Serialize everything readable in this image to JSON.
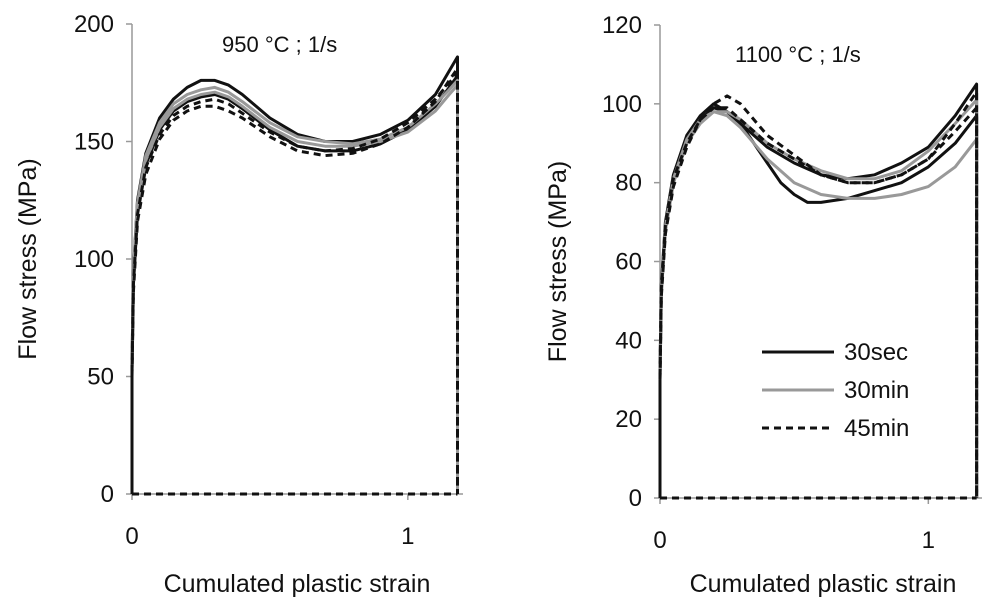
{
  "chart_data": [
    {
      "type": "line",
      "annotation": "950 °C ; 1/s",
      "xlabel": "Cumulated plastic strain",
      "ylabel": "Flow stress (MPa)",
      "xlim": [
        0,
        1.2
      ],
      "ylim": [
        0,
        200
      ],
      "xticks": [
        0,
        1
      ],
      "yticks": [
        0,
        50,
        100,
        150,
        200
      ],
      "grid": false,
      "series": [
        {
          "group": "30sec",
          "style": "solid",
          "color": "#111111",
          "x": [
            0,
            0.005,
            0.02,
            0.05,
            0.1,
            0.15,
            0.2,
            0.25,
            0.3,
            0.35,
            0.4,
            0.5,
            0.6,
            0.7,
            0.8,
            0.9,
            1.0,
            1.1,
            1.15,
            1.18
          ],
          "y": [
            55,
            95,
            125,
            145,
            160,
            168,
            173,
            176,
            176,
            174,
            170,
            160,
            153,
            150,
            150,
            153,
            159,
            170,
            180,
            186
          ]
        },
        {
          "group": "30sec",
          "style": "solid",
          "color": "#111111",
          "x": [
            0,
            0.005,
            0.02,
            0.05,
            0.1,
            0.15,
            0.2,
            0.25,
            0.3,
            0.35,
            0.4,
            0.5,
            0.6,
            0.7,
            0.8,
            0.9,
            1.0,
            1.1,
            1.15,
            1.18
          ],
          "y": [
            52,
            90,
            120,
            140,
            155,
            163,
            167,
            169,
            170,
            168,
            164,
            155,
            148,
            146,
            146,
            149,
            155,
            165,
            173,
            178
          ]
        },
        {
          "group": "30min",
          "style": "solid",
          "color": "#999999",
          "x": [
            0,
            0.005,
            0.02,
            0.05,
            0.1,
            0.15,
            0.2,
            0.25,
            0.3,
            0.35,
            0.4,
            0.5,
            0.6,
            0.7,
            0.8,
            0.9,
            1.0,
            1.1,
            1.15,
            1.18
          ],
          "y": [
            55,
            94,
            124,
            144,
            158,
            166,
            170,
            172,
            173,
            171,
            167,
            158,
            152,
            150,
            149,
            151,
            156,
            166,
            172,
            176
          ]
        },
        {
          "group": "30min",
          "style": "solid",
          "color": "#999999",
          "x": [
            0,
            0.005,
            0.02,
            0.05,
            0.1,
            0.15,
            0.2,
            0.25,
            0.3,
            0.35,
            0.4,
            0.5,
            0.6,
            0.7,
            0.8,
            0.9,
            1.0,
            1.1,
            1.15,
            1.18
          ],
          "y": [
            54,
            92,
            122,
            142,
            156,
            164,
            168,
            170,
            171,
            169,
            165,
            156,
            150,
            148,
            148,
            150,
            154,
            163,
            170,
            174
          ]
        },
        {
          "group": "45min",
          "style": "dashed",
          "color": "#111111",
          "x": [
            0,
            0.005,
            0.02,
            0.05,
            0.1,
            0.15,
            0.2,
            0.25,
            0.3,
            0.35,
            0.4,
            0.5,
            0.6,
            0.7,
            0.8,
            0.9,
            1.0,
            1.1,
            1.15,
            1.18
          ],
          "y": [
            50,
            86,
            116,
            136,
            151,
            159,
            163,
            165,
            165,
            163,
            160,
            152,
            146,
            144,
            145,
            149,
            156,
            167,
            176,
            181
          ]
        },
        {
          "group": "45min",
          "style": "dashed",
          "color": "#111111",
          "x": [
            0,
            0.005,
            0.02,
            0.05,
            0.1,
            0.15,
            0.2,
            0.25,
            0.3,
            0.35,
            0.4,
            0.5,
            0.6,
            0.7,
            0.8,
            0.9,
            1.0,
            1.1,
            1.15,
            1.18
          ],
          "y": [
            52,
            89,
            119,
            139,
            153,
            161,
            165,
            167,
            168,
            166,
            162,
            154,
            148,
            146,
            147,
            151,
            158,
            168,
            175,
            179
          ]
        }
      ]
    },
    {
      "type": "line",
      "annotation": "1100 °C ; 1/s",
      "xlabel": "Cumulated plastic strain",
      "ylabel": "Flow stress (MPa)",
      "xlim": [
        0,
        1.2
      ],
      "ylim": [
        0,
        120
      ],
      "xticks": [
        0,
        1
      ],
      "yticks": [
        0,
        20,
        40,
        60,
        80,
        100,
        120
      ],
      "grid": false,
      "legend": {
        "placement": "lower-right",
        "entries": [
          {
            "label": "30sec",
            "style": "solid",
            "color": "#111111"
          },
          {
            "label": "30min",
            "style": "solid",
            "color": "#999999"
          },
          {
            "label": "45min",
            "style": "dashed",
            "color": "#111111"
          }
        ]
      },
      "series": [
        {
          "group": "30sec",
          "style": "solid",
          "color": "#111111",
          "x": [
            0,
            0.005,
            0.02,
            0.05,
            0.1,
            0.15,
            0.2,
            0.25,
            0.3,
            0.35,
            0.4,
            0.45,
            0.5,
            0.55,
            0.6,
            0.7,
            0.8,
            0.9,
            1.0,
            1.1,
            1.18
          ],
          "y": [
            30,
            52,
            68,
            80,
            90,
            96,
            99,
            98,
            95,
            90,
            85,
            80,
            77,
            75,
            75,
            76,
            78,
            80,
            84,
            90,
            97
          ]
        },
        {
          "group": "30sec",
          "style": "solid",
          "color": "#111111",
          "x": [
            0,
            0.005,
            0.02,
            0.05,
            0.1,
            0.15,
            0.2,
            0.25,
            0.3,
            0.35,
            0.4,
            0.5,
            0.6,
            0.7,
            0.8,
            0.9,
            1.0,
            1.1,
            1.18
          ],
          "y": [
            32,
            54,
            70,
            82,
            92,
            97,
            100,
            98,
            95,
            92,
            89,
            85,
            82,
            81,
            82,
            85,
            89,
            97,
            105
          ]
        },
        {
          "group": "30min",
          "style": "solid",
          "color": "#999999",
          "x": [
            0,
            0.005,
            0.02,
            0.05,
            0.1,
            0.15,
            0.2,
            0.25,
            0.3,
            0.35,
            0.4,
            0.5,
            0.6,
            0.7,
            0.8,
            0.9,
            1.0,
            1.1,
            1.18
          ],
          "y": [
            31,
            52,
            68,
            80,
            90,
            95,
            98,
            97,
            94,
            90,
            86,
            80,
            77,
            76,
            76,
            77,
            79,
            84,
            91
          ]
        },
        {
          "group": "30min",
          "style": "solid",
          "color": "#999999",
          "x": [
            0,
            0.005,
            0.02,
            0.05,
            0.1,
            0.15,
            0.2,
            0.25,
            0.3,
            0.35,
            0.4,
            0.5,
            0.6,
            0.7,
            0.8,
            0.9,
            1.0,
            1.1,
            1.18
          ],
          "y": [
            32,
            53,
            69,
            81,
            91,
            96,
            98,
            98,
            96,
            93,
            90,
            86,
            83,
            81,
            81,
            83,
            88,
            95,
            101
          ]
        },
        {
          "group": "45min",
          "style": "dashed",
          "color": "#111111",
          "x": [
            0,
            0.005,
            0.02,
            0.05,
            0.1,
            0.15,
            0.2,
            0.25,
            0.3,
            0.35,
            0.4,
            0.5,
            0.6,
            0.7,
            0.8,
            0.9,
            1.0,
            1.1,
            1.18
          ],
          "y": [
            30,
            51,
            67,
            79,
            89,
            96,
            100,
            102,
            100,
            96,
            92,
            87,
            82,
            80,
            80,
            82,
            86,
            95,
            103
          ]
        },
        {
          "group": "45min",
          "style": "dashed",
          "color": "#111111",
          "x": [
            0,
            0.005,
            0.02,
            0.05,
            0.1,
            0.15,
            0.2,
            0.25,
            0.3,
            0.35,
            0.4,
            0.5,
            0.6,
            0.7,
            0.8,
            0.9,
            1.0,
            1.1,
            1.18
          ],
          "y": [
            31,
            53,
            69,
            81,
            90,
            96,
            99,
            99,
            96,
            93,
            90,
            86,
            82,
            80,
            80,
            82,
            86,
            93,
            99
          ]
        }
      ]
    }
  ]
}
